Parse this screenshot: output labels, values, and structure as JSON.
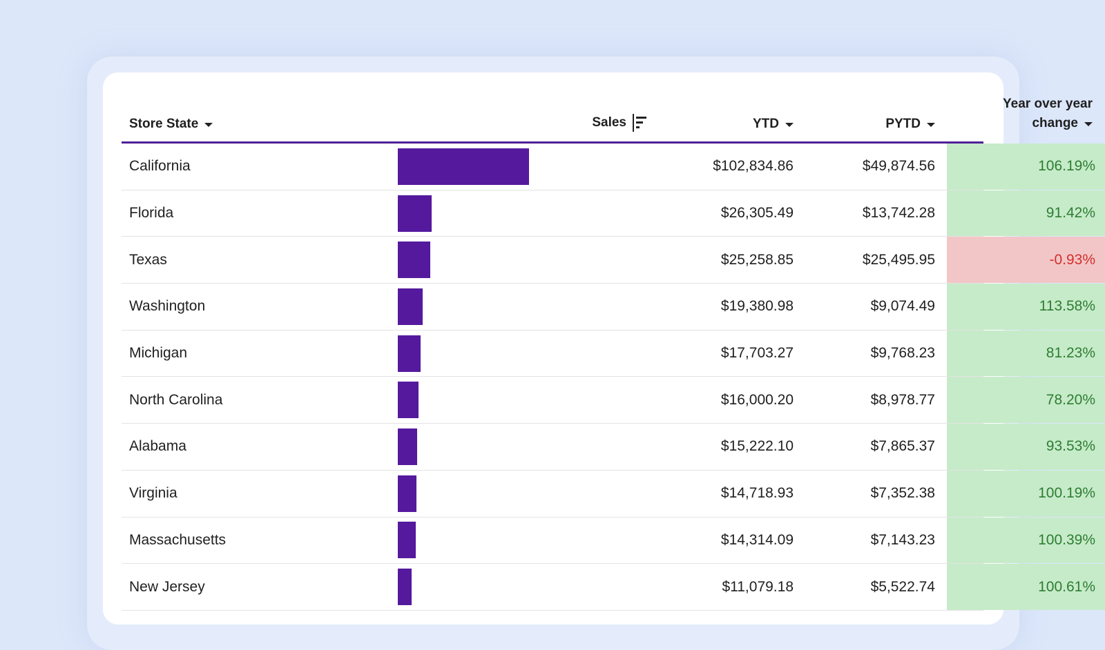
{
  "colors": {
    "background": "#dce7fa",
    "bar": "#55199e",
    "header_rule": "#4f1f97",
    "positive_bg": "#c6ebc9",
    "positive_text": "#2e7d32",
    "negative_bg": "#f2c6c6",
    "negative_text": "#d32f2f"
  },
  "table": {
    "headers": {
      "state": "Store State",
      "sales": "Sales",
      "ytd": "YTD",
      "pytd": "PYTD",
      "yoy_line1": "Year over year",
      "yoy_line2": "change"
    },
    "rows": [
      {
        "state": "California",
        "sales": 102834.86,
        "ytd": "$102,834.86",
        "pytd": "$49,874.56",
        "yoy": "106.19%",
        "positive": true
      },
      {
        "state": "Florida",
        "sales": 26305.49,
        "ytd": "$26,305.49",
        "pytd": "$13,742.28",
        "yoy": "91.42%",
        "positive": true
      },
      {
        "state": "Texas",
        "sales": 25258.85,
        "ytd": "$25,258.85",
        "pytd": "$25,495.95",
        "yoy": "-0.93%",
        "positive": false
      },
      {
        "state": "Washington",
        "sales": 19380.98,
        "ytd": "$19,380.98",
        "pytd": "$9,074.49",
        "yoy": "113.58%",
        "positive": true
      },
      {
        "state": "Michigan",
        "sales": 17703.27,
        "ytd": "$17,703.27",
        "pytd": "$9,768.23",
        "yoy": "81.23%",
        "positive": true
      },
      {
        "state": "North Carolina",
        "sales": 16000.2,
        "ytd": "$16,000.20",
        "pytd": "$8,978.77",
        "yoy": "78.20%",
        "positive": true
      },
      {
        "state": "Alabama",
        "sales": 15222.1,
        "ytd": "$15,222.10",
        "pytd": "$7,865.37",
        "yoy": "93.53%",
        "positive": true
      },
      {
        "state": "Virginia",
        "sales": 14718.93,
        "ytd": "$14,718.93",
        "pytd": "$7,352.38",
        "yoy": "100.19%",
        "positive": true
      },
      {
        "state": "Massachusetts",
        "sales": 14314.09,
        "ytd": "$14,314.09",
        "pytd": "$7,143.23",
        "yoy": "100.39%",
        "positive": true
      },
      {
        "state": "New Jersey",
        "sales": 11079.18,
        "ytd": "$11,079.18",
        "pytd": "$5,522.74",
        "yoy": "100.61%",
        "positive": true
      }
    ]
  }
}
